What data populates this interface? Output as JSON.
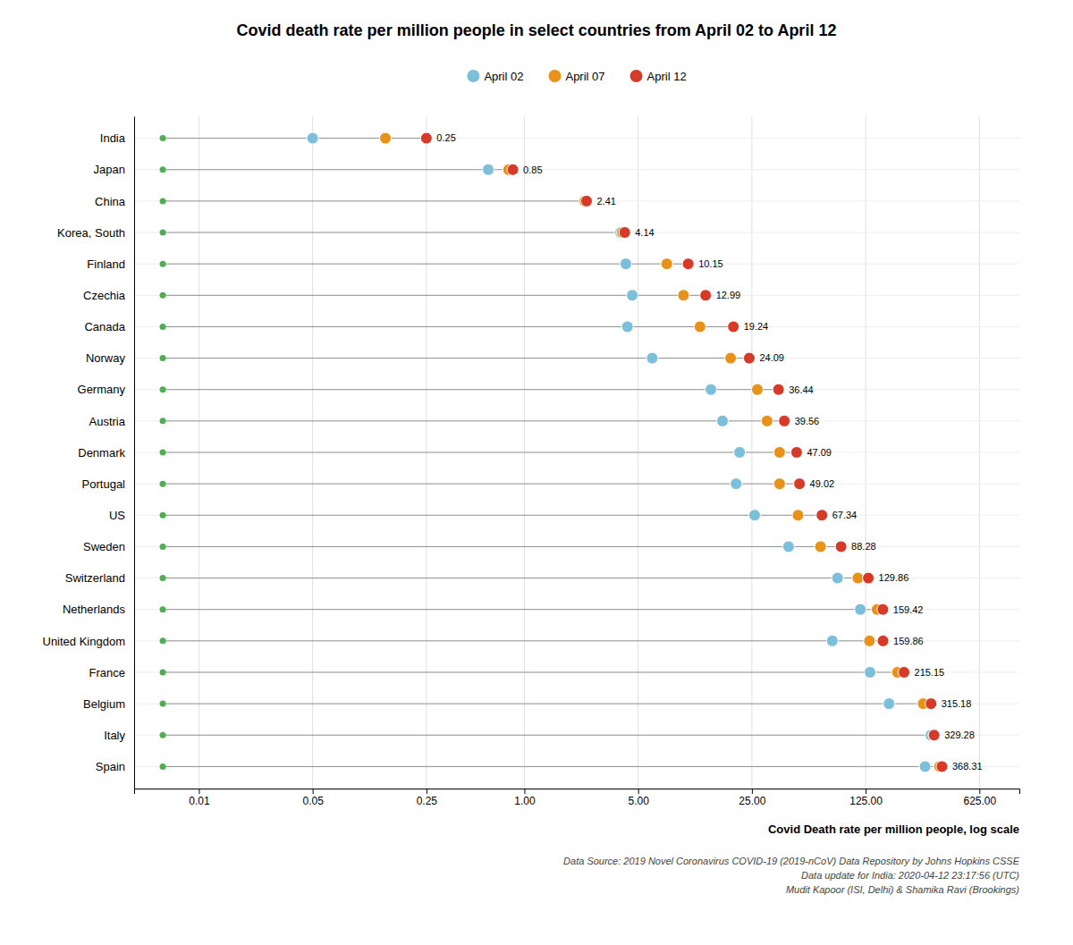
{
  "chart_data": {
    "type": "dot",
    "title": "Covid death rate per million people in select countries from April 02 to April 12",
    "x_label": "Covid Death rate per million people, log scale",
    "annotations": [
      "Data Source: 2019 Novel Coronavirus COVID-19 (2019-nCoV) Data Repository by Johns Hopkins CSSE",
      "Data update for India: 2020-04-12 23:17:56 (UTC)",
      "Mudit Kapoor (ISI, Delhi) & Shamika Ravi (Brookings)"
    ],
    "categories": [
      "India",
      "Japan",
      "China",
      "Korea, South",
      "Finland",
      "Czechia",
      "Canada",
      "Norway",
      "Germany",
      "Austria",
      "Denmark",
      "Portugal",
      "US",
      "Sweden",
      "Switzerland",
      "Netherlands",
      "United Kingdom",
      "France",
      "Belgium",
      "Italy",
      "Spain"
    ],
    "series": [
      {
        "type": "baseline",
        "color": "#4CAF50",
        "values": [
          0.006,
          0.006,
          0.006,
          0.006,
          0.006,
          0.006,
          0.006,
          0.006,
          0.006,
          0.006,
          0.006,
          0.006,
          0.006,
          0.006,
          0.006,
          0.006,
          0.006,
          0.006,
          0.006,
          0.006,
          0.006
        ]
      },
      {
        "name": "April 02",
        "color": "#7BBFDB",
        "values": [
          0.05,
          0.6,
          2.35,
          3.9,
          4.2,
          4.6,
          4.3,
          6.1,
          14.0,
          16.5,
          21.0,
          20.0,
          26.0,
          42.0,
          84.0,
          116.0,
          78.0,
          133.0,
          174.0,
          315.0,
          290.0
        ]
      },
      {
        "name": "April 07",
        "color": "#E8921A",
        "values": [
          0.14,
          0.8,
          2.35,
          4.0,
          7.5,
          9.5,
          12.0,
          18.5,
          27.0,
          31.0,
          37.0,
          37.0,
          48.0,
          66.0,
          112.0,
          147.0,
          132.0,
          196.0,
          282.0,
          328.0,
          356.0
        ]
      },
      {
        "name": "April 12",
        "color": "#D63B2A",
        "data_labels": true,
        "values": [
          0.25,
          0.85,
          2.41,
          4.14,
          10.15,
          12.99,
          19.24,
          24.09,
          36.44,
          39.56,
          47.09,
          49.02,
          67.34,
          88.28,
          129.86,
          159.42,
          159.86,
          215.15,
          315.18,
          329.28,
          368.31
        ]
      }
    ],
    "log": "x",
    "xlim": [
      0.004,
      1100
    ],
    "xticks": [
      0.01,
      0.05,
      0.25,
      {
        "value": 1.0,
        "label": "1.00"
      },
      {
        "value": 5.0,
        "label": "5.00"
      },
      {
        "value": 25.0,
        "label": "25.00"
      },
      {
        "value": 125.0,
        "label": "125.00"
      },
      {
        "value": 625.0,
        "label": "625.00"
      }
    ],
    "grid": true,
    "legend": "top"
  }
}
